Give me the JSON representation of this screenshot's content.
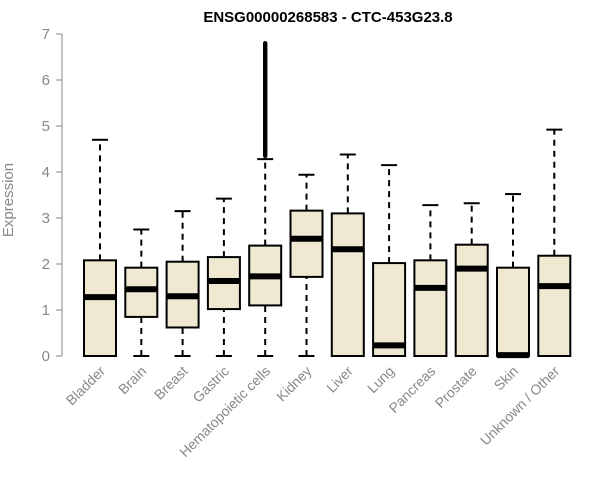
{
  "chart_data": {
    "type": "boxplot",
    "title": "ENSG00000268583 - CTC-453G23.8",
    "xlabel": "",
    "ylabel": "Expression",
    "ylim": [
      0,
      7
    ],
    "yticks": [
      "0",
      "1",
      "2",
      "3",
      "4",
      "5",
      "6",
      "7"
    ],
    "grid": false,
    "box_color": "#efe9d2",
    "categories": [
      "Bladder",
      "Brain",
      "Breast",
      "Gastric",
      "Hematopoietic cells",
      "Kidney",
      "Liver",
      "Lung",
      "Pancreas",
      "Prostate",
      "Skin",
      "Unknown / Other"
    ],
    "boxes": [
      {
        "min": 0,
        "q1": 0,
        "median": 1.28,
        "q3": 2.08,
        "max": 4.7
      },
      {
        "min": 0,
        "q1": 0.85,
        "median": 1.45,
        "q3": 1.92,
        "max": 2.75
      },
      {
        "min": 0,
        "q1": 0.62,
        "median": 1.3,
        "q3": 2.05,
        "max": 3.15
      },
      {
        "min": 0,
        "q1": 1.02,
        "median": 1.63,
        "q3": 2.15,
        "max": 3.42
      },
      {
        "min": 0,
        "q1": 1.1,
        "median": 1.73,
        "q3": 2.4,
        "max": 4.28
      },
      {
        "min": 0,
        "q1": 1.72,
        "median": 2.55,
        "q3": 3.16,
        "max": 3.94
      },
      {
        "min": 0,
        "q1": 0,
        "median": 2.32,
        "q3": 3.1,
        "max": 4.38
      },
      {
        "min": 0,
        "q1": 0,
        "median": 0.23,
        "q3": 2.02,
        "max": 4.15
      },
      {
        "min": 0,
        "q1": 0,
        "median": 1.48,
        "q3": 2.08,
        "max": 3.28
      },
      {
        "min": 0,
        "q1": 0,
        "median": 1.9,
        "q3": 2.42,
        "max": 3.32
      },
      {
        "min": 0,
        "q1": 0,
        "median": 0.02,
        "q3": 1.92,
        "max": 3.52
      },
      {
        "min": 0,
        "q1": 0,
        "median": 1.52,
        "q3": 2.18,
        "max": 4.92
      }
    ],
    "outliers": [
      {
        "category": "Hematopoietic cells",
        "y_min": 4.35,
        "y_max": 6.8
      }
    ]
  }
}
